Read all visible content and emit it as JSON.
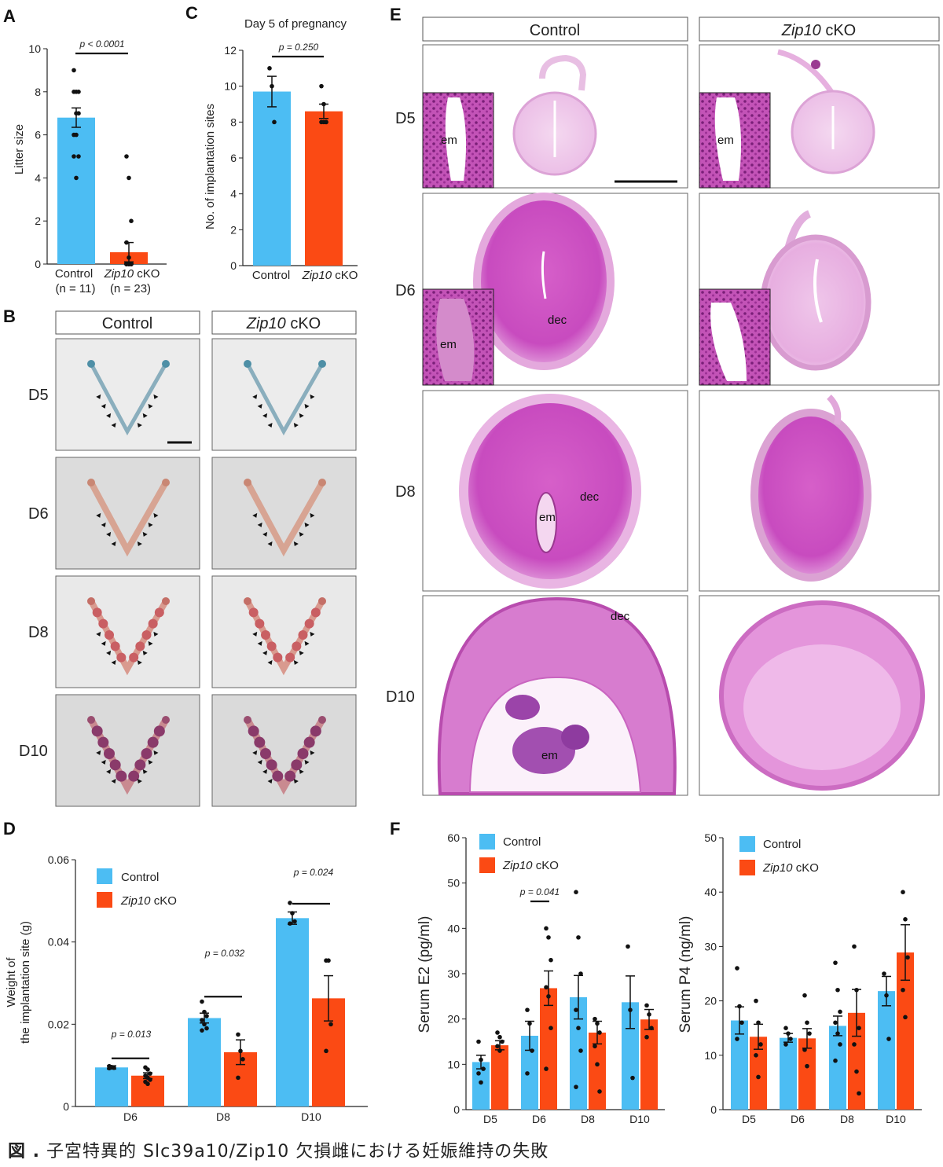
{
  "caption": {
    "prefix": "図 .",
    "text": "子宮特異的 Slc39a10/Zip10 欠損雌における妊娠維持の失敗"
  },
  "colors": {
    "control": "#4cbdf3",
    "cko": "#fb4a14"
  },
  "labels": {
    "control": "Control",
    "cko_gene": "Zip10",
    "cko_suffix": " cKO"
  },
  "stage_labels": [
    "D5",
    "D6",
    "D8",
    "D10"
  ],
  "panels": {
    "A": {
      "letter": "A",
      "ylabel": "Litter size",
      "p": "p < 0.0001",
      "n_labels": [
        "(n = 11)",
        "(n = 23)"
      ]
    },
    "B": {
      "letter": "B"
    },
    "C": {
      "letter": "C",
      "title": "Day 5 of pregnancy",
      "ylabel": "No. of  implantation sites",
      "p": "p = 0.250"
    },
    "D": {
      "letter": "D",
      "ylabel_1": "Weight of",
      "ylabel_2": "the implantation site (g)",
      "p": [
        "p = 0.013",
        "p = 0.032",
        "p = 0.024"
      ]
    },
    "E": {
      "letter": "E",
      "tissue_labels": {
        "em": "em",
        "dec": "dec"
      }
    },
    "F": {
      "letter": "F",
      "ylabel_e2": "Serum E2 (pg/ml)",
      "ylabel_p4": "Serum P4 (ng/ml)",
      "p_e2": "p = 0.041"
    }
  },
  "chart_data": [
    {
      "id": "A",
      "type": "bar",
      "categories": [
        "Control",
        "Zip10 cKO"
      ],
      "values": [
        6.8,
        0.55
      ],
      "errors": [
        0.45,
        0.45
      ],
      "ylim": [
        0,
        10
      ],
      "yticks": [
        0,
        2,
        4,
        6,
        8,
        10
      ],
      "ylabel": "Litter size",
      "points": [
        [
          9,
          8,
          8,
          8,
          7,
          7,
          6,
          6,
          5,
          5,
          4
        ],
        [
          5,
          4,
          2,
          1,
          0.3,
          0,
          0,
          0,
          0,
          0,
          0,
          0,
          0,
          0,
          0,
          0,
          0,
          0,
          0,
          0,
          0,
          0,
          0
        ]
      ]
    },
    {
      "id": "C",
      "type": "bar",
      "title": "Day 5 of pregnancy",
      "categories": [
        "Control",
        "Zip10 cKO"
      ],
      "values": [
        9.7,
        8.6
      ],
      "errors": [
        0.85,
        0.4
      ],
      "ylim": [
        0,
        12
      ],
      "yticks": [
        0,
        2,
        4,
        6,
        8,
        10,
        12
      ],
      "ylabel": "No. of  implantation sites",
      "points": [
        [
          11,
          10,
          8
        ],
        [
          10,
          9,
          8,
          8,
          8,
          8
        ]
      ]
    },
    {
      "id": "D",
      "type": "bar",
      "categories": [
        "D6",
        "D8",
        "D10"
      ],
      "series": [
        {
          "name": "Control",
          "values": [
            0.0095,
            0.0215,
            0.0458
          ],
          "errors": [
            0.0004,
            0.0012,
            0.0015
          ]
        },
        {
          "name": "Zip10 cKO",
          "values": [
            0.0075,
            0.0132,
            0.0263
          ],
          "errors": [
            0.0007,
            0.003,
            0.0055
          ]
        }
      ],
      "ylim": [
        0,
        0.06
      ],
      "yticks": [
        "0",
        "0.02",
        "0.04",
        "0.06"
      ],
      "ylabel": "Weight of the implantation site (g)",
      "points": {
        "Control": [
          [
            0.0098,
            0.0096,
            0.0094,
            0.0093
          ],
          [
            0.0255,
            0.023,
            0.022,
            0.021,
            0.02,
            0.019,
            0.0185
          ],
          [
            0.0495,
            0.047,
            0.045,
            0.0445
          ]
        ],
        "Zip10 cKO": [
          [
            0.0095,
            0.009,
            0.008,
            0.0075,
            0.007,
            0.0065,
            0.006,
            0.0055
          ],
          [
            0.0175,
            0.0135,
            0.0115,
            0.007
          ],
          [
            0.0355,
            0.0355,
            0.02,
            0.0135
          ]
        ]
      }
    },
    {
      "id": "F-E2",
      "type": "bar",
      "categories": [
        "D5",
        "D6",
        "D8",
        "D10"
      ],
      "series": [
        {
          "name": "Control",
          "values": [
            10.5,
            16.3,
            24.8,
            23.7
          ],
          "errors": [
            1.5,
            3.2,
            4.8,
            5.8
          ]
        },
        {
          "name": "Zip10 cKO",
          "values": [
            14.2,
            26.8,
            17.0,
            19.9
          ],
          "errors": [
            1.0,
            3.8,
            2.5,
            2.2
          ]
        }
      ],
      "ylim": [
        0,
        60
      ],
      "yticks": [
        0,
        10,
        20,
        30,
        40,
        50,
        60
      ],
      "ylabel": "Serum E2 (pg/ml)",
      "points": {
        "Control": [
          [
            15,
            11,
            9,
            8,
            6
          ],
          [
            22,
            19,
            13,
            8
          ],
          [
            48,
            38,
            30,
            22,
            18,
            13,
            5
          ],
          [
            36,
            22,
            7
          ]
        ],
        "Cko": [
          [
            17,
            16,
            15,
            14,
            13
          ],
          [
            40,
            38,
            33,
            27,
            25,
            18,
            9
          ],
          [
            20,
            19,
            17,
            14,
            10,
            4
          ],
          [
            23,
            21,
            18,
            16
          ]
        ]
      }
    },
    {
      "id": "F-P4",
      "type": "bar",
      "categories": [
        "D5",
        "D6",
        "D8",
        "D10"
      ],
      "series": [
        {
          "name": "Control",
          "values": [
            16.4,
            13.2,
            15.4,
            21.8
          ],
          "errors": [
            2.5,
            0.8,
            1.8,
            2.7
          ]
        },
        {
          "name": "Zip10 cKO",
          "values": [
            13.4,
            13.1,
            17.8,
            28.9
          ],
          "errors": [
            2.3,
            1.8,
            4.3,
            5.1
          ]
        }
      ],
      "ylim": [
        0,
        50
      ],
      "yticks": [
        0,
        10,
        20,
        30,
        40,
        50
      ],
      "ylabel": "Serum P4 (ng/ml)",
      "points": {
        "Control": [
          [
            26,
            19,
            16,
            13
          ],
          [
            15,
            14,
            13,
            12
          ],
          [
            27,
            22,
            18,
            16,
            14,
            12,
            9
          ],
          [
            25,
            21,
            13
          ]
        ],
        "Cko": [
          [
            20,
            16,
            12,
            10,
            6
          ],
          [
            21,
            16,
            14,
            11,
            8
          ],
          [
            30,
            22,
            15,
            12,
            7,
            3
          ],
          [
            40,
            35,
            28,
            22,
            17
          ]
        ]
      }
    }
  ]
}
